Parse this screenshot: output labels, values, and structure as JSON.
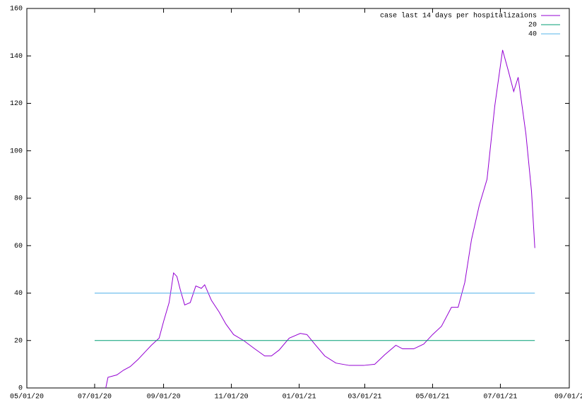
{
  "chart_data": {
    "type": "line",
    "legend": "top right",
    "xlim": [
      "2020-05-01",
      "2021-09-01"
    ],
    "xticks": [
      {
        "value": "2020-05-01",
        "label": "05/01/20"
      },
      {
        "value": "2020-07-01",
        "label": "07/01/20"
      },
      {
        "value": "2020-09-01",
        "label": "09/01/20"
      },
      {
        "value": "2020-11-01",
        "label": "11/01/20"
      },
      {
        "value": "2021-01-01",
        "label": "01/01/21"
      },
      {
        "value": "2021-03-01",
        "label": "03/01/21"
      },
      {
        "value": "2021-05-01",
        "label": "05/01/21"
      },
      {
        "value": "2021-07-01",
        "label": "07/01/21"
      },
      {
        "value": "2021-09-01",
        "label": "09/01/2"
      }
    ],
    "ylim": [
      0,
      160
    ],
    "yticks": [
      0,
      20,
      40,
      60,
      80,
      100,
      120,
      140,
      160
    ],
    "series": [
      {
        "name": "case last 14 days per hospitalizaions",
        "color": "#9400d3",
        "x": [
          "2020-07-11",
          "2020-07-13",
          "2020-07-21",
          "2020-07-27",
          "2020-08-02",
          "2020-08-09",
          "2020-08-15",
          "2020-08-21",
          "2020-08-28",
          "2020-09-01",
          "2020-09-06",
          "2020-09-10",
          "2020-09-13",
          "2020-09-16",
          "2020-09-20",
          "2020-09-25",
          "2020-09-30",
          "2020-10-05",
          "2020-10-08",
          "2020-10-14",
          "2020-10-21",
          "2020-10-27",
          "2020-11-03",
          "2020-11-12",
          "2020-11-22",
          "2020-12-01",
          "2020-12-07",
          "2020-12-14",
          "2020-12-23",
          "2021-01-02",
          "2021-01-08",
          "2021-01-15",
          "2021-01-24",
          "2021-02-03",
          "2021-02-15",
          "2021-02-28",
          "2021-03-10",
          "2021-03-19",
          "2021-03-29",
          "2021-04-04",
          "2021-04-14",
          "2021-04-23",
          "2021-05-01",
          "2021-05-09",
          "2021-05-18",
          "2021-05-24",
          "2021-05-30",
          "2021-06-05",
          "2021-06-12",
          "2021-06-19",
          "2021-06-26",
          "2021-07-03",
          "2021-07-08",
          "2021-07-13",
          "2021-07-17",
          "2021-07-24",
          "2021-07-29",
          "2021-08-01"
        ],
        "values": [
          0,
          4.5,
          5.5,
          7.5,
          9,
          12,
          15,
          18,
          21,
          28,
          36,
          48.5,
          47,
          41.5,
          35,
          36,
          43,
          42,
          43.5,
          37,
          32,
          27,
          22.5,
          20,
          16.5,
          13.5,
          13.5,
          16,
          21,
          23,
          22.5,
          18.5,
          13.5,
          10.5,
          9.5,
          9.5,
          10,
          14,
          18,
          16.5,
          16.5,
          18.5,
          22.5,
          26,
          34,
          34,
          44.5,
          62.5,
          77,
          88,
          119,
          142.5,
          134,
          125,
          131,
          107,
          83,
          59
        ]
      },
      {
        "name": "20",
        "color": "#009e73",
        "x": [
          "2020-07-01",
          "2021-08-01"
        ],
        "values": [
          20,
          20
        ]
      },
      {
        "name": "40",
        "color": "#56b4e9",
        "x": [
          "2020-07-01",
          "2021-08-01"
        ],
        "values": [
          40,
          40
        ]
      }
    ]
  }
}
